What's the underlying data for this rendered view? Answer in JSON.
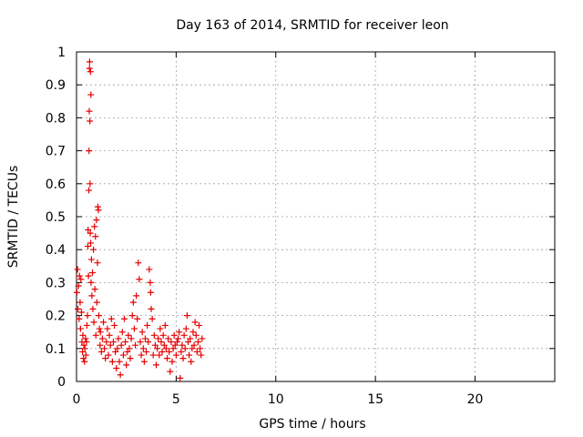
{
  "chart_data": {
    "type": "scatter",
    "title": "Day 163 of 2014, SRMTID for receiver leon",
    "xlabel": "GPS time / hours",
    "ylabel": "SRMTID / TECUs",
    "xlim": [
      0,
      24
    ],
    "ylim": [
      0,
      1
    ],
    "xticks": [
      "0",
      "5",
      "10",
      "15",
      "20"
    ],
    "yticks": [
      "0",
      "0.1",
      "0.2",
      "0.3",
      "0.4",
      "0.5",
      "0.6",
      "0.7",
      "0.8",
      "0.9",
      "1"
    ],
    "grid": true,
    "series_color": "#e60000",
    "marker": "plus",
    "points": [
      [
        0.02,
        0.27
      ],
      [
        0.05,
        0.34
      ],
      [
        0.07,
        0.22
      ],
      [
        0.1,
        0.29
      ],
      [
        0.13,
        0.19
      ],
      [
        0.15,
        0.32
      ],
      [
        0.18,
        0.24
      ],
      [
        0.2,
        0.16
      ],
      [
        0.22,
        0.31
      ],
      [
        0.25,
        0.21
      ],
      [
        0.27,
        0.12
      ],
      [
        0.3,
        0.09
      ],
      [
        0.32,
        0.14
      ],
      [
        0.35,
        0.07
      ],
      [
        0.37,
        0.11
      ],
      [
        0.4,
        0.06
      ],
      [
        0.42,
        0.1
      ],
      [
        0.45,
        0.13
      ],
      [
        0.47,
        0.08
      ],
      [
        0.5,
        0.12
      ],
      [
        0.52,
        0.17
      ],
      [
        0.55,
        0.2
      ],
      [
        0.57,
        0.41
      ],
      [
        0.58,
        0.46
      ],
      [
        0.6,
        0.32
      ],
      [
        0.62,
        0.58
      ],
      [
        0.63,
        0.7
      ],
      [
        0.64,
        0.82
      ],
      [
        0.65,
        0.95
      ],
      [
        0.66,
        0.97
      ],
      [
        0.67,
        0.79
      ],
      [
        0.68,
        0.6
      ],
      [
        0.69,
        0.45
      ],
      [
        0.7,
        0.94
      ],
      [
        0.71,
        0.42
      ],
      [
        0.72,
        0.87
      ],
      [
        0.73,
        0.3
      ],
      [
        0.75,
        0.37
      ],
      [
        0.77,
        0.26
      ],
      [
        0.8,
        0.33
      ],
      [
        0.82,
        0.22
      ],
      [
        0.85,
        0.4
      ],
      [
        0.87,
        0.18
      ],
      [
        0.9,
        0.47
      ],
      [
        0.92,
        0.28
      ],
      [
        0.95,
        0.44
      ],
      [
        0.97,
        0.14
      ],
      [
        1.0,
        0.49
      ],
      [
        1.02,
        0.24
      ],
      [
        1.05,
        0.36
      ],
      [
        1.07,
        0.53
      ],
      [
        1.1,
        0.52
      ],
      [
        1.12,
        0.2
      ],
      [
        1.15,
        0.16
      ],
      [
        1.18,
        0.11
      ],
      [
        1.2,
        0.15
      ],
      [
        1.25,
        0.09
      ],
      [
        1.3,
        0.13
      ],
      [
        1.35,
        0.18
      ],
      [
        1.4,
        0.1
      ],
      [
        1.45,
        0.07
      ],
      [
        1.5,
        0.12
      ],
      [
        1.55,
        0.16
      ],
      [
        1.6,
        0.08
      ],
      [
        1.65,
        0.14
      ],
      [
        1.7,
        0.11
      ],
      [
        1.75,
        0.19
      ],
      [
        1.8,
        0.06
      ],
      [
        1.85,
        0.12
      ],
      [
        1.9,
        0.17
      ],
      [
        1.95,
        0.09
      ],
      [
        2.0,
        0.04
      ],
      [
        2.05,
        0.1
      ],
      [
        2.1,
        0.13
      ],
      [
        2.15,
        0.06
      ],
      [
        2.2,
        0.02
      ],
      [
        2.25,
        0.11
      ],
      [
        2.3,
        0.15
      ],
      [
        2.35,
        0.08
      ],
      [
        2.4,
        0.19
      ],
      [
        2.45,
        0.12
      ],
      [
        2.5,
        0.05
      ],
      [
        2.55,
        0.09
      ],
      [
        2.6,
        0.14
      ],
      [
        2.65,
        0.1
      ],
      [
        2.7,
        0.07
      ],
      [
        2.75,
        0.13
      ],
      [
        2.8,
        0.2
      ],
      [
        2.85,
        0.24
      ],
      [
        2.9,
        0.16
      ],
      [
        2.95,
        0.11
      ],
      [
        3.0,
        0.26
      ],
      [
        3.05,
        0.19
      ],
      [
        3.1,
        0.36
      ],
      [
        3.15,
        0.31
      ],
      [
        3.2,
        0.12
      ],
      [
        3.25,
        0.08
      ],
      [
        3.3,
        0.15
      ],
      [
        3.35,
        0.1
      ],
      [
        3.4,
        0.06
      ],
      [
        3.45,
        0.13
      ],
      [
        3.5,
        0.09
      ],
      [
        3.55,
        0.17
      ],
      [
        3.6,
        0.12
      ],
      [
        3.65,
        0.34
      ],
      [
        3.7,
        0.3
      ],
      [
        3.72,
        0.27
      ],
      [
        3.75,
        0.22
      ],
      [
        3.8,
        0.19
      ],
      [
        3.85,
        0.08
      ],
      [
        3.9,
        0.14
      ],
      [
        3.95,
        0.11
      ],
      [
        4.0,
        0.05
      ],
      [
        4.05,
        0.1
      ],
      [
        4.1,
        0.13
      ],
      [
        4.15,
        0.08
      ],
      [
        4.2,
        0.16
      ],
      [
        4.25,
        0.12
      ],
      [
        4.3,
        0.09
      ],
      [
        4.35,
        0.14
      ],
      [
        4.4,
        0.11
      ],
      [
        4.45,
        0.17
      ],
      [
        4.5,
        0.1
      ],
      [
        4.55,
        0.07
      ],
      [
        4.6,
        0.13
      ],
      [
        4.65,
        0.09
      ],
      [
        4.7,
        0.03
      ],
      [
        4.75,
        0.12
      ],
      [
        4.8,
        0.06
      ],
      [
        4.85,
        0.1
      ],
      [
        4.9,
        0.14
      ],
      [
        4.95,
        0.11
      ],
      [
        5.0,
        0.08
      ],
      [
        5.05,
        0.12
      ],
      [
        5.1,
        0.13
      ],
      [
        5.15,
        0.15
      ],
      [
        5.2,
        0.01
      ],
      [
        5.25,
        0.09
      ],
      [
        5.3,
        0.11
      ],
      [
        5.35,
        0.07
      ],
      [
        5.4,
        0.14
      ],
      [
        5.45,
        0.1
      ],
      [
        5.5,
        0.16
      ],
      [
        5.55,
        0.2
      ],
      [
        5.6,
        0.12
      ],
      [
        5.65,
        0.08
      ],
      [
        5.7,
        0.13
      ],
      [
        5.75,
        0.06
      ],
      [
        5.8,
        0.1
      ],
      [
        5.85,
        0.15
      ],
      [
        5.9,
        0.11
      ],
      [
        5.95,
        0.18
      ],
      [
        6.0,
        0.14
      ],
      [
        6.05,
        0.09
      ],
      [
        6.1,
        0.12
      ],
      [
        6.15,
        0.17
      ],
      [
        6.2,
        0.1
      ],
      [
        6.25,
        0.08
      ],
      [
        6.3,
        0.13
      ]
    ]
  }
}
